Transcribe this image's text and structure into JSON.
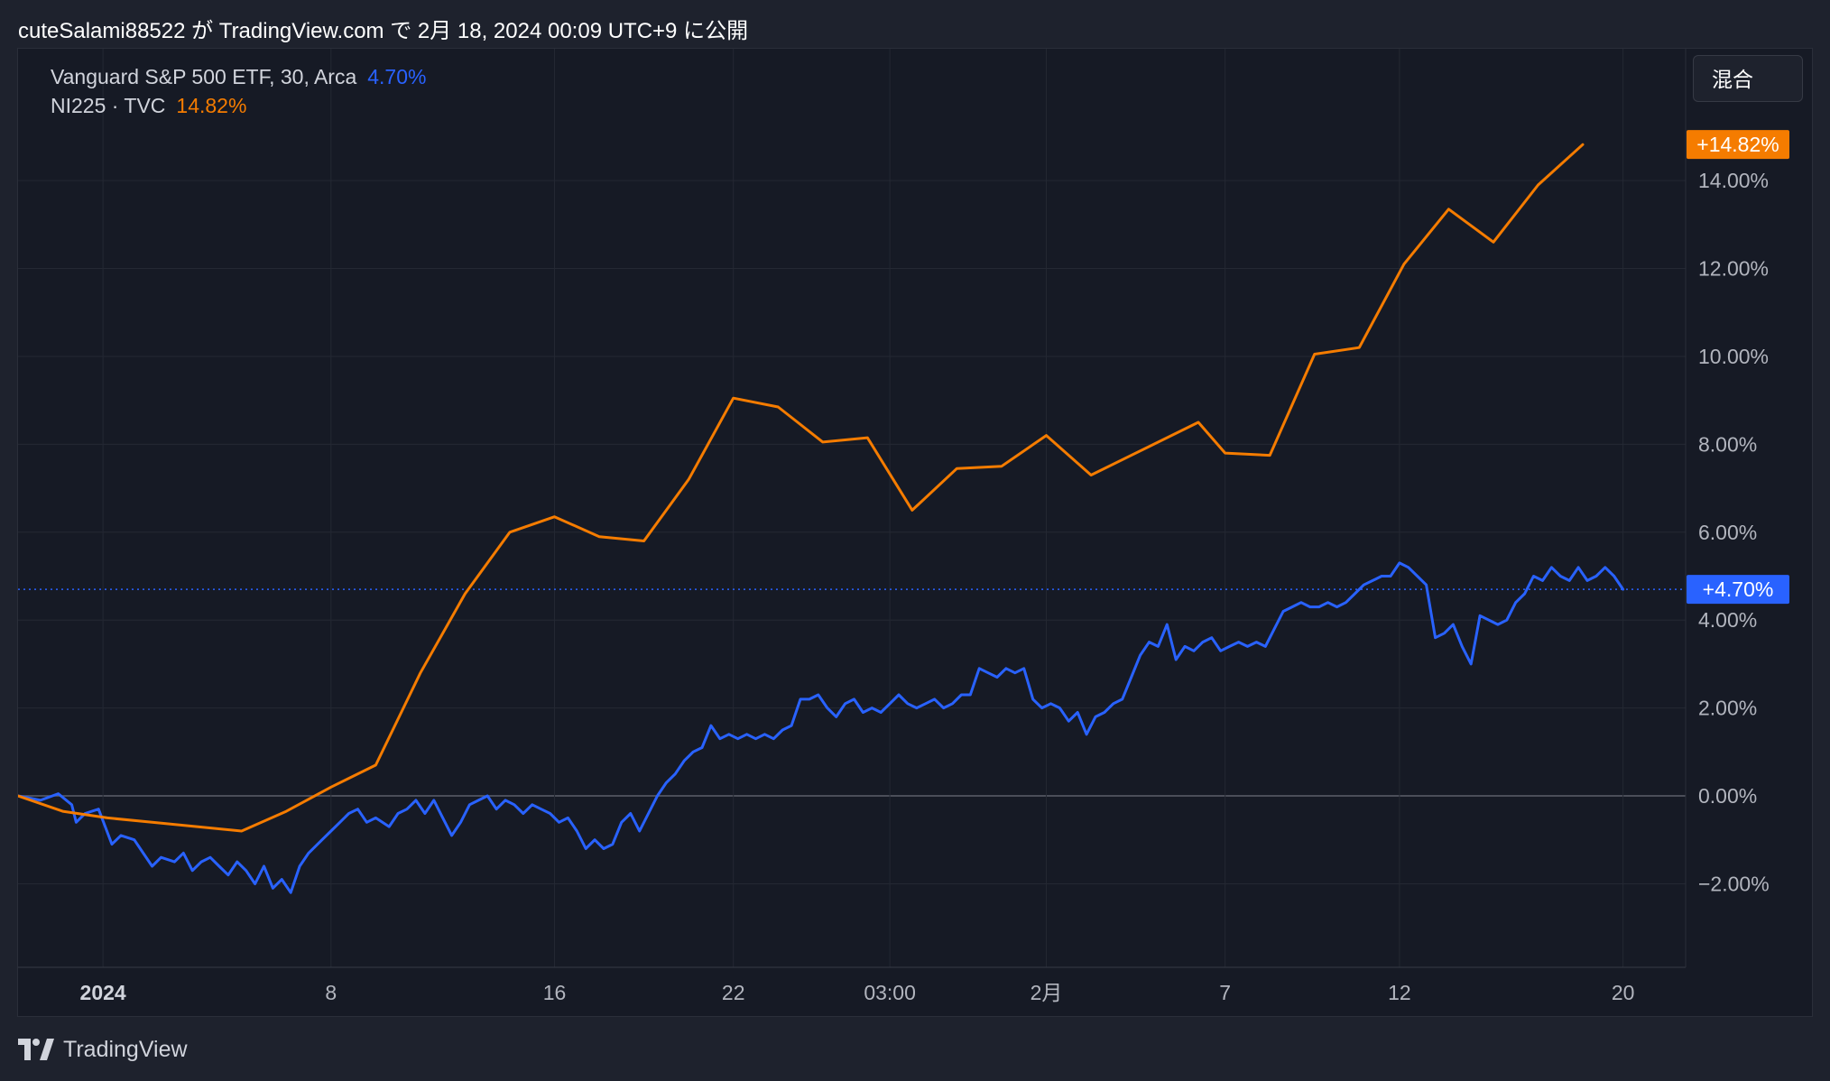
{
  "header": {
    "text": "cuteSalami88522 が TradingView.com で 2月 18, 2024 00:09 UTC+9 に公開"
  },
  "controls": {
    "scale_mode_label": "混合"
  },
  "footer": {
    "brand": "TradingView"
  },
  "colors": {
    "voo": "#2962ff",
    "ni225": "#f57c00",
    "grid": "#242833",
    "zero_line": "#5d606b",
    "axis_text": "#b2b5be"
  },
  "chart_data": {
    "type": "line",
    "title": "",
    "xlabel": "",
    "ylabel": "",
    "ylim": [
      -3.9,
      17.0
    ],
    "x_ticks": [
      {
        "label": "2024",
        "x": 0.9,
        "bold": true
      },
      {
        "label": "8",
        "x": 6.0
      },
      {
        "label": "16",
        "x": 11.0
      },
      {
        "label": "22",
        "x": 15.0
      },
      {
        "label": "03:00",
        "x": 18.5
      },
      {
        "label": "2月",
        "x": 22.0
      },
      {
        "label": "7",
        "x": 26.0
      },
      {
        "label": "12",
        "x": 29.9
      },
      {
        "label": "20",
        "x": 34.9
      }
    ],
    "y_ticks": [
      {
        "label": "−2.00%",
        "value": -2
      },
      {
        "label": "0.00%",
        "value": 0
      },
      {
        "label": "2.00%",
        "value": 2
      },
      {
        "label": "4.00%",
        "value": 4
      },
      {
        "label": "6.00%",
        "value": 6
      },
      {
        "label": "8.00%",
        "value": 8
      },
      {
        "label": "10.00%",
        "value": 10
      },
      {
        "label": "12.00%",
        "value": 12
      },
      {
        "label": "14.00%",
        "value": 14
      }
    ],
    "series": [
      {
        "name": "Vanguard S&P 500 ETF, 30, Arca",
        "legend_value": "4.70%",
        "last_label": "+4.70%",
        "last_value": 4.7,
        "points": [
          [
            -1.0,
            0
          ],
          [
            -0.5,
            -0.1
          ],
          [
            -0.1,
            0.05
          ],
          [
            0.2,
            -0.2
          ],
          [
            0.3,
            -0.6
          ],
          [
            0.5,
            -0.4
          ],
          [
            0.8,
            -0.3
          ],
          [
            1.1,
            -1.1
          ],
          [
            1.3,
            -0.9
          ],
          [
            1.6,
            -1.0
          ],
          [
            1.8,
            -1.3
          ],
          [
            2.0,
            -1.6
          ],
          [
            2.2,
            -1.4
          ],
          [
            2.5,
            -1.5
          ],
          [
            2.7,
            -1.3
          ],
          [
            2.9,
            -1.7
          ],
          [
            3.1,
            -1.5
          ],
          [
            3.3,
            -1.4
          ],
          [
            3.5,
            -1.6
          ],
          [
            3.7,
            -1.8
          ],
          [
            3.9,
            -1.5
          ],
          [
            4.1,
            -1.7
          ],
          [
            4.3,
            -2.0
          ],
          [
            4.5,
            -1.6
          ],
          [
            4.7,
            -2.1
          ],
          [
            4.9,
            -1.9
          ],
          [
            5.1,
            -2.2
          ],
          [
            5.3,
            -1.6
          ],
          [
            5.5,
            -1.3
          ],
          [
            5.8,
            -1.0
          ],
          [
            6.0,
            -0.8
          ],
          [
            6.2,
            -0.6
          ],
          [
            6.4,
            -0.4
          ],
          [
            6.6,
            -0.3
          ],
          [
            6.8,
            -0.6
          ],
          [
            7.0,
            -0.5
          ],
          [
            7.3,
            -0.7
          ],
          [
            7.5,
            -0.4
          ],
          [
            7.7,
            -0.3
          ],
          [
            7.9,
            -0.1
          ],
          [
            8.1,
            -0.4
          ],
          [
            8.3,
            -0.1
          ],
          [
            8.5,
            -0.5
          ],
          [
            8.7,
            -0.9
          ],
          [
            8.9,
            -0.6
          ],
          [
            9.1,
            -0.2
          ],
          [
            9.3,
            -0.1
          ],
          [
            9.5,
            0
          ],
          [
            9.7,
            -0.3
          ],
          [
            9.9,
            -0.1
          ],
          [
            10.1,
            -0.2
          ],
          [
            10.3,
            -0.4
          ],
          [
            10.5,
            -0.2
          ],
          [
            10.7,
            -0.3
          ],
          [
            10.9,
            -0.4
          ],
          [
            11.1,
            -0.6
          ],
          [
            11.3,
            -0.5
          ],
          [
            11.5,
            -0.8
          ],
          [
            11.7,
            -1.2
          ],
          [
            11.9,
            -1.0
          ],
          [
            12.1,
            -1.2
          ],
          [
            12.3,
            -1.1
          ],
          [
            12.5,
            -0.6
          ],
          [
            12.7,
            -0.4
          ],
          [
            12.9,
            -0.8
          ],
          [
            13.1,
            -0.4
          ],
          [
            13.3,
            0.0
          ],
          [
            13.5,
            0.3
          ],
          [
            13.7,
            0.5
          ],
          [
            13.9,
            0.8
          ],
          [
            14.1,
            1.0
          ],
          [
            14.3,
            1.1
          ],
          [
            14.5,
            1.6
          ],
          [
            14.7,
            1.3
          ],
          [
            14.9,
            1.4
          ],
          [
            15.1,
            1.3
          ],
          [
            15.3,
            1.4
          ],
          [
            15.5,
            1.3
          ],
          [
            15.7,
            1.4
          ],
          [
            15.9,
            1.3
          ],
          [
            16.1,
            1.5
          ],
          [
            16.3,
            1.6
          ],
          [
            16.5,
            2.2
          ],
          [
            16.7,
            2.2
          ],
          [
            16.9,
            2.3
          ],
          [
            17.1,
            2.0
          ],
          [
            17.3,
            1.8
          ],
          [
            17.5,
            2.1
          ],
          [
            17.7,
            2.2
          ],
          [
            17.9,
            1.9
          ],
          [
            18.1,
            2.0
          ],
          [
            18.3,
            1.9
          ],
          [
            18.5,
            2.1
          ],
          [
            18.7,
            2.3
          ],
          [
            18.9,
            2.1
          ],
          [
            19.1,
            2.0
          ],
          [
            19.3,
            2.1
          ],
          [
            19.5,
            2.2
          ],
          [
            19.7,
            2.0
          ],
          [
            19.9,
            2.1
          ],
          [
            20.1,
            2.3
          ],
          [
            20.3,
            2.3
          ],
          [
            20.5,
            2.9
          ],
          [
            20.7,
            2.8
          ],
          [
            20.9,
            2.7
          ],
          [
            21.1,
            2.9
          ],
          [
            21.3,
            2.8
          ],
          [
            21.5,
            2.9
          ],
          [
            21.7,
            2.2
          ],
          [
            21.9,
            2.0
          ],
          [
            22.1,
            2.1
          ],
          [
            22.3,
            2.0
          ],
          [
            22.5,
            1.7
          ],
          [
            22.7,
            1.9
          ],
          [
            22.9,
            1.4
          ],
          [
            23.1,
            1.8
          ],
          [
            23.3,
            1.9
          ],
          [
            23.5,
            2.1
          ],
          [
            23.7,
            2.2
          ],
          [
            23.9,
            2.7
          ],
          [
            24.1,
            3.2
          ],
          [
            24.3,
            3.5
          ],
          [
            24.5,
            3.4
          ],
          [
            24.7,
            3.9
          ],
          [
            24.9,
            3.1
          ],
          [
            25.1,
            3.4
          ],
          [
            25.3,
            3.3
          ],
          [
            25.5,
            3.5
          ],
          [
            25.7,
            3.6
          ],
          [
            25.9,
            3.3
          ],
          [
            26.1,
            3.4
          ],
          [
            26.3,
            3.5
          ],
          [
            26.5,
            3.4
          ],
          [
            26.7,
            3.5
          ],
          [
            26.9,
            3.4
          ],
          [
            27.1,
            3.8
          ],
          [
            27.3,
            4.2
          ],
          [
            27.5,
            4.3
          ],
          [
            27.7,
            4.4
          ],
          [
            27.9,
            4.3
          ],
          [
            28.1,
            4.3
          ],
          [
            28.3,
            4.4
          ],
          [
            28.5,
            4.3
          ],
          [
            28.7,
            4.4
          ],
          [
            28.9,
            4.6
          ],
          [
            29.1,
            4.8
          ],
          [
            29.3,
            4.9
          ],
          [
            29.5,
            5.0
          ],
          [
            29.7,
            5.0
          ],
          [
            29.9,
            5.3
          ],
          [
            30.1,
            5.2
          ],
          [
            30.3,
            5.0
          ],
          [
            30.5,
            4.8
          ],
          [
            30.7,
            3.6
          ],
          [
            30.9,
            3.7
          ],
          [
            31.1,
            3.9
          ],
          [
            31.3,
            3.4
          ],
          [
            31.5,
            3.0
          ],
          [
            31.7,
            4.1
          ],
          [
            31.9,
            4.0
          ],
          [
            32.1,
            3.9
          ],
          [
            32.3,
            4.0
          ],
          [
            32.5,
            4.4
          ],
          [
            32.7,
            4.6
          ],
          [
            32.9,
            5.0
          ],
          [
            33.1,
            4.9
          ],
          [
            33.3,
            5.2
          ],
          [
            33.5,
            5.0
          ],
          [
            33.7,
            4.9
          ],
          [
            33.9,
            5.2
          ],
          [
            34.1,
            4.9
          ],
          [
            34.3,
            5.0
          ],
          [
            34.5,
            5.2
          ],
          [
            34.7,
            5.0
          ],
          [
            34.9,
            4.7
          ]
        ]
      },
      {
        "name": "NI225 · TVC",
        "legend_value": "14.82%",
        "last_label": "+14.82%",
        "last_value": 14.82,
        "points": [
          [
            -1.0,
            0
          ],
          [
            0.0,
            -0.35
          ],
          [
            1.0,
            -0.5
          ],
          [
            2.0,
            -0.6
          ],
          [
            3.0,
            -0.7
          ],
          [
            4.0,
            -0.8
          ],
          [
            5.0,
            -0.35
          ],
          [
            6.0,
            0.2
          ],
          [
            7.0,
            0.7
          ],
          [
            8.0,
            2.8
          ],
          [
            9.0,
            4.6
          ],
          [
            10.0,
            6.0
          ],
          [
            11.0,
            6.35
          ],
          [
            12.0,
            5.9
          ],
          [
            13.0,
            5.8
          ],
          [
            14.0,
            7.2
          ],
          [
            15.0,
            9.05
          ],
          [
            16.0,
            8.85
          ],
          [
            17.0,
            8.05
          ],
          [
            18.0,
            8.15
          ],
          [
            19.0,
            6.5
          ],
          [
            20.0,
            7.45
          ],
          [
            21.0,
            7.5
          ],
          [
            22.0,
            8.2
          ],
          [
            23.0,
            7.3
          ],
          [
            25.4,
            8.5
          ],
          [
            26.0,
            7.8
          ],
          [
            27.0,
            7.75
          ],
          [
            28.0,
            10.05
          ],
          [
            29.0,
            10.2
          ],
          [
            30.0,
            12.1
          ],
          [
            31.0,
            13.35
          ],
          [
            32.0,
            12.6
          ],
          [
            33.0,
            13.9
          ],
          [
            34.0,
            14.82
          ]
        ]
      }
    ]
  }
}
